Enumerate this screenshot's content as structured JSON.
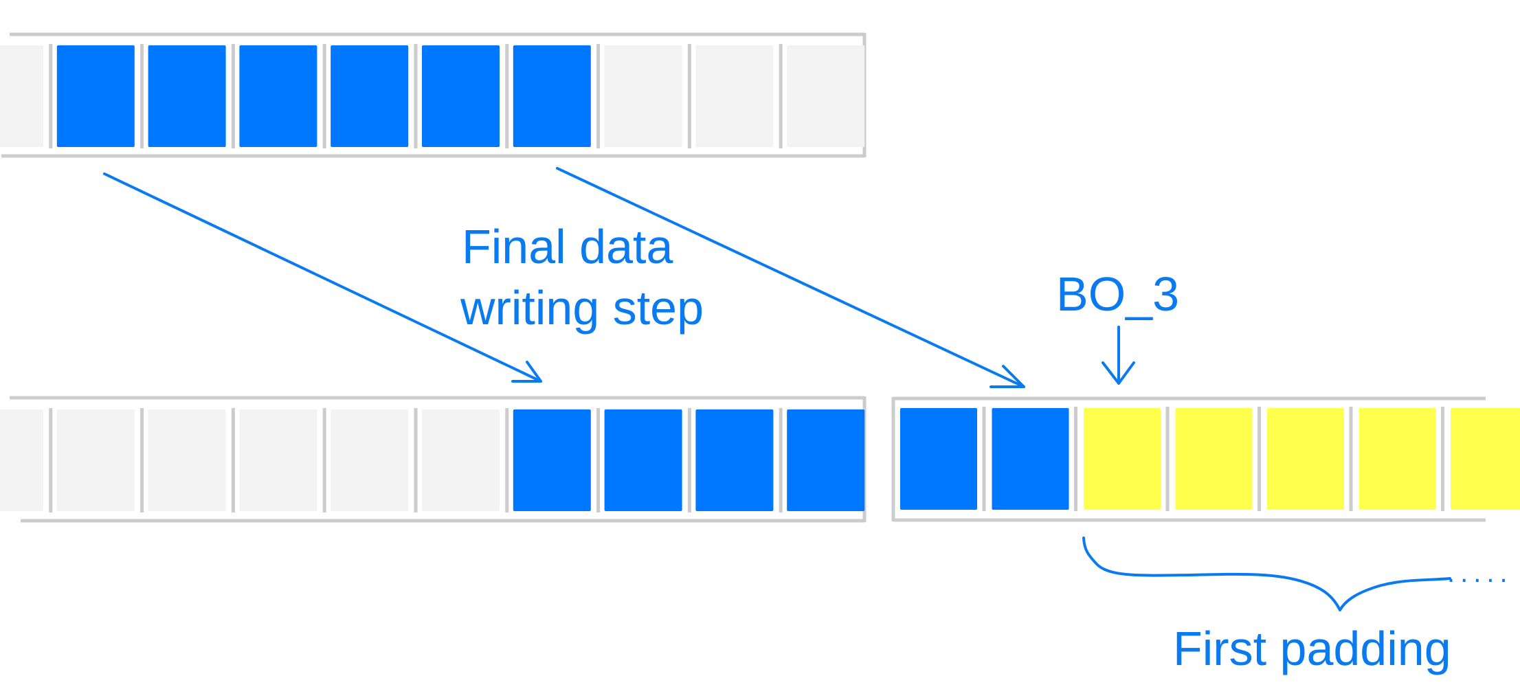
{
  "colors": {
    "data_block": "#0077FF",
    "empty_block": "#F3F3F3",
    "padding_block": "#FFFF4D",
    "divider": "#CCCCCC",
    "annotation": "#0A7AF0"
  },
  "labels": {
    "step": [
      "Final data",
      "writing step"
    ],
    "bo_marker": "BO_3",
    "padding": "First padding",
    "continuation": "....."
  },
  "buffers": {
    "source": [
      "empty",
      "data",
      "data",
      "data",
      "data",
      "data",
      "data",
      "empty",
      "empty",
      "empty"
    ],
    "dest_left": [
      "empty",
      "empty",
      "empty",
      "empty",
      "empty",
      "empty",
      "data",
      "data",
      "data",
      "data"
    ],
    "dest_right": [
      "data",
      "data",
      "padding",
      "padding",
      "padding",
      "padding",
      "padding"
    ]
  }
}
